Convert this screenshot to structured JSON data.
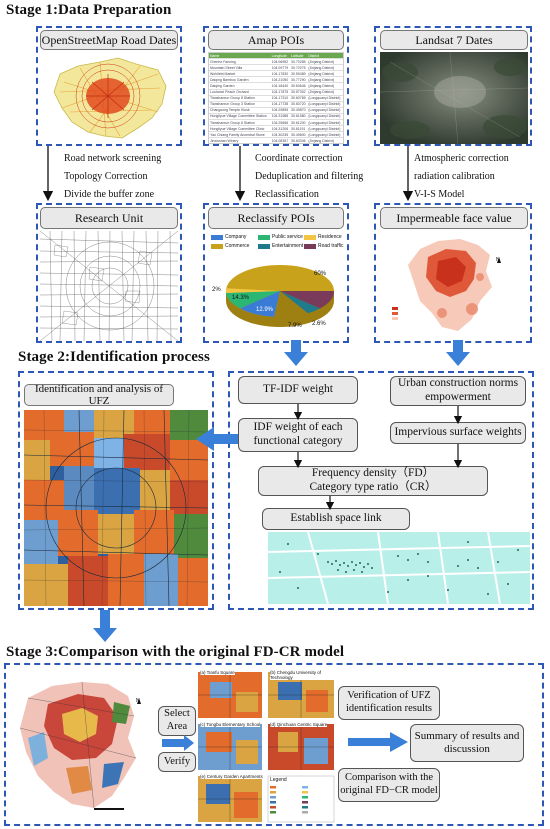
{
  "stage1": {
    "title": "Stage 1:Data Preparation",
    "osm": {
      "title": "OpenStreetMap Road Dates",
      "notes": [
        "Road network screening",
        "Topology Correction",
        "Divide the buffer zone"
      ]
    },
    "amap": {
      "title": "Amap POIs",
      "notes": [
        "Coordinate correction",
        "Deduplication and filtering",
        "Reclassification"
      ]
    },
    "landsat": {
      "title": "Landsat 7 Dates",
      "notes": [
        "Atmospheric correction",
        "radiation calibration",
        "V-I-S Model"
      ]
    },
    "research_unit": {
      "title": "Research Unit"
    },
    "reclassify": {
      "title": "Reclassify POIs",
      "legend": [
        "Company",
        "Public service",
        "Residence",
        "Commerce",
        "Entertainment",
        "Road traffic"
      ],
      "colors": [
        "#3a7bd5",
        "#2bb673",
        "#f4c542",
        "#c8a21a",
        "#1f7a8c",
        "#7a3b5a"
      ],
      "labels": [
        "60%",
        "12.9%",
        "14.3%",
        "7.9%",
        "2.6%",
        "2%"
      ]
    },
    "impermeable": {
      "title": "Impermeable face value"
    }
  },
  "stage2": {
    "title": "Stage 2:Identification process",
    "ufz_title": "Identification and analysis of UFZ",
    "boxes": {
      "tfidf": "TF-IDF weight",
      "norms": "Urban construction norms empowerment",
      "idf": "IDF weight of each functional category",
      "impervious": "Impervious surface weights",
      "fd_line1": "Frequency density（FD）",
      "fd_line2": "Category type ratio（CR）",
      "link": "Establish space link"
    }
  },
  "stage3": {
    "title": "Stage 3:Comparison with the original FD-CR model",
    "select_area": "Select Area",
    "verify": "Verify",
    "verification": "Verification of UFZ identification results",
    "summary": "Summary of results and discussion",
    "comparison": "Comparison with the original FD−CR model",
    "panels": [
      "(a) Tianfu Square",
      "(b) Chengdu University of Technology",
      "(c) Tongbu Elementary School",
      "(d) Qinchuan Centric Square",
      "(e) Century Garden Apartments"
    ],
    "legend_title": "Legend"
  }
}
